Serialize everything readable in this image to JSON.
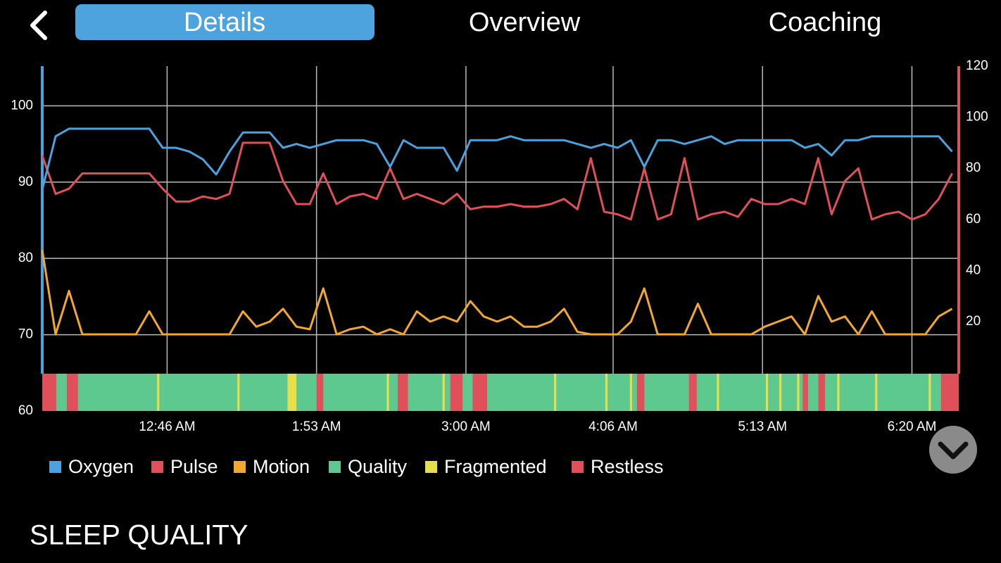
{
  "tabs": [
    "Details",
    "Overview",
    "Coaching"
  ],
  "section_title": "SLEEP QUALITY",
  "chart_data": {
    "type": "line",
    "xlim": [
      -10,
      401
    ],
    "xticks": [
      {
        "value": 46,
        "label": "12:46 AM"
      },
      {
        "value": 113,
        "label": "1:53 AM"
      },
      {
        "value": 180,
        "label": "3:00 AM"
      },
      {
        "value": 246,
        "label": "4:06 AM"
      },
      {
        "value": 313,
        "label": "5:13 AM"
      },
      {
        "value": 380,
        "label": "6:20 AM"
      }
    ],
    "ylim": [
      60,
      105.2
    ],
    "yticks": [
      60,
      70,
      80,
      90,
      100
    ],
    "y2lim": [
      -15,
      120
    ],
    "y2ticks": [
      20,
      40,
      60,
      80,
      100,
      120
    ],
    "grid": true,
    "x": [
      -10,
      -4,
      2,
      8,
      14,
      20,
      26,
      32,
      38,
      44,
      50,
      56,
      62,
      68,
      74,
      80,
      86,
      92,
      98,
      104,
      110,
      116,
      122,
      128,
      134,
      140,
      146,
      152,
      158,
      164,
      170,
      176,
      182,
      188,
      194,
      200,
      206,
      212,
      218,
      224,
      230,
      236,
      242,
      248,
      254,
      260,
      266,
      272,
      278,
      284,
      290,
      296,
      302,
      308,
      314,
      320,
      326,
      332,
      338,
      344,
      350,
      356,
      362,
      368,
      374,
      380,
      386,
      392,
      398
    ],
    "series": [
      {
        "name": "Oxygen",
        "color": "#4ba2dd",
        "values": [
          89,
          96,
          97,
          97,
          97,
          97,
          97,
          97,
          97,
          94.5,
          94.5,
          94,
          93,
          91,
          94,
          96.5,
          96.5,
          96.5,
          94.5,
          95,
          94.5,
          95,
          95.5,
          95.5,
          95.5,
          95,
          92,
          95.5,
          94.5,
          94.5,
          94.5,
          91.5,
          95.5,
          95.5,
          95.5,
          96,
          95.5,
          95.5,
          95.5,
          95.5,
          95,
          94.5,
          95,
          94.5,
          95.5,
          92,
          95.5,
          95.5,
          95,
          95.5,
          96,
          95,
          95.5,
          95.5,
          95.5,
          95.5,
          95.5,
          94.5,
          95,
          93.5,
          95.5,
          95.5,
          96,
          96,
          96,
          96,
          96,
          96,
          94
        ]
      },
      {
        "name": "Pulse",
        "color": "#e0505a",
        "axis": "y2",
        "values": [
          85,
          70,
          72,
          78,
          78,
          78,
          78,
          78,
          78,
          72,
          67,
          67,
          69,
          68,
          70,
          90,
          90,
          90,
          75,
          66,
          66,
          78,
          66,
          69,
          70,
          68,
          80,
          68,
          70,
          68,
          66,
          70,
          64,
          65,
          65,
          66,
          65,
          65,
          66,
          68,
          64,
          84,
          63,
          62,
          60,
          80,
          60,
          62,
          84,
          60,
          62,
          63,
          61,
          68,
          66,
          66,
          68,
          66,
          84,
          62,
          75,
          80,
          60,
          62,
          63,
          60,
          62,
          68,
          78
        ]
      },
      {
        "name": "Motion",
        "color": "#f0a830",
        "axis": "y2",
        "values": [
          48,
          15,
          32,
          15,
          15,
          15,
          15,
          15,
          24,
          15,
          15,
          15,
          15,
          15,
          15,
          24,
          18,
          20,
          25,
          18,
          17,
          33,
          15,
          17,
          18,
          15,
          17,
          15,
          24,
          20,
          22,
          20,
          28,
          22,
          20,
          22,
          18,
          18,
          20,
          25,
          16,
          15,
          15,
          15,
          20,
          33,
          15,
          15,
          15,
          27,
          15,
          15,
          15,
          15,
          18,
          20,
          22,
          15,
          30,
          20,
          22,
          15,
          24,
          15,
          15,
          15,
          15,
          22,
          25
        ]
      }
    ],
    "bands": [
      {
        "name": "Quality",
        "color": "#5ec98f",
        "segments": [
          [
            -10,
            401
          ]
        ]
      },
      {
        "name": "Fragmented",
        "color": "#e6de4c",
        "segments": [
          [
            41.5,
            42.5
          ],
          [
            77.5,
            78.5
          ],
          [
            100,
            104
          ],
          [
            144.5,
            145.5
          ],
          [
            169.5,
            170.5
          ],
          [
            219.5,
            220.5
          ],
          [
            242.5,
            243.5
          ],
          [
            253.5,
            254.5
          ],
          [
            292.5,
            293.5
          ],
          [
            314.5,
            315.5
          ],
          [
            320.5,
            321.5
          ],
          [
            328.5,
            329.5
          ],
          [
            346.5,
            347.5
          ],
          [
            363.5,
            364.5
          ],
          [
            387.5,
            388.5
          ],
          [
            399.5,
            400.5
          ]
        ]
      },
      {
        "name": "Restless",
        "color": "#e0505a",
        "segments": [
          [
            -10,
            -3.7
          ],
          [
            1,
            6
          ],
          [
            113,
            116
          ],
          [
            149.4,
            154
          ],
          [
            173,
            178.5
          ],
          [
            183,
            189.5
          ],
          [
            256.7,
            260
          ],
          [
            280,
            283.5
          ],
          [
            331,
            333.4
          ],
          [
            338,
            341
          ],
          [
            393,
            401
          ]
        ]
      }
    ]
  }
}
